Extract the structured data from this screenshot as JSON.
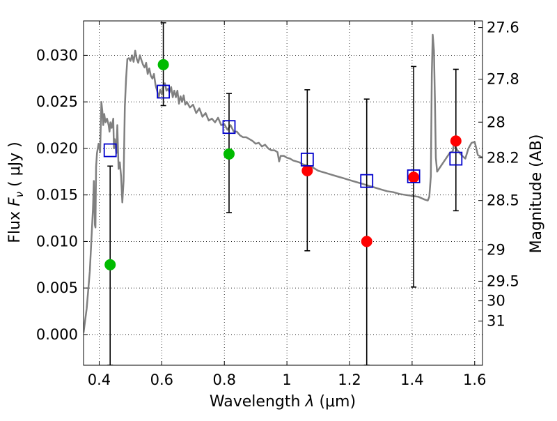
{
  "chart_data": {
    "type": "scatter",
    "xlabel_prefix": "Wavelength",
    "xlabel_symbol": "λ",
    "xlabel_unit": "(μm)",
    "ylabel_prefix": "Flux",
    "ylabel_symbol": "F",
    "ylabel_sub": "ν",
    "ylabel_unit": "( μJy )",
    "right_ylabel": "Magnitude (AB)",
    "xlim": [
      0.35,
      1.625
    ],
    "ylim": [
      -0.0033,
      0.0337
    ],
    "grid": true,
    "x_ticks": [
      {
        "value": 0.4,
        "label": "0.4"
      },
      {
        "value": 0.6,
        "label": "0.6"
      },
      {
        "value": 0.8,
        "label": "0.8"
      },
      {
        "value": 1.0,
        "label": "1"
      },
      {
        "value": 1.2,
        "label": "1.2"
      },
      {
        "value": 1.4,
        "label": "1.4"
      },
      {
        "value": 1.6,
        "label": "1.6"
      }
    ],
    "y_ticks": [
      {
        "value": 0.0,
        "label": "0.000"
      },
      {
        "value": 0.005,
        "label": "0.005"
      },
      {
        "value": 0.01,
        "label": "0.010"
      },
      {
        "value": 0.015,
        "label": "0.015"
      },
      {
        "value": 0.02,
        "label": "0.020"
      },
      {
        "value": 0.025,
        "label": "0.025"
      },
      {
        "value": 0.03,
        "label": "0.030"
      }
    ],
    "right_ticks": [
      {
        "label": "27.6",
        "flux": 0.03298
      },
      {
        "label": "27.8",
        "flux": 0.02744
      },
      {
        "label": "28",
        "flux": 0.02282
      },
      {
        "label": "28.2",
        "flux": 0.01898
      },
      {
        "label": "28.5",
        "flux": 0.0144
      },
      {
        "label": "29",
        "flux": 0.00909
      },
      {
        "label": "29.5",
        "flux": 0.00573
      },
      {
        "label": "30",
        "flux": 0.00362
      },
      {
        "label": "31",
        "flux": 0.00144
      }
    ],
    "series": [
      {
        "kind": "model-spectrum",
        "color": "#808080",
        "points": [
          [
            0.35,
            0.0002
          ],
          [
            0.36,
            0.0028
          ],
          [
            0.37,
            0.0068
          ],
          [
            0.38,
            0.0135
          ],
          [
            0.383,
            0.0165
          ],
          [
            0.386,
            0.0118
          ],
          [
            0.388,
            0.0115
          ],
          [
            0.39,
            0.018
          ],
          [
            0.393,
            0.0195
          ],
          [
            0.398,
            0.0205
          ],
          [
            0.403,
            0.0196
          ],
          [
            0.407,
            0.025
          ],
          [
            0.41,
            0.024
          ],
          [
            0.413,
            0.0225
          ],
          [
            0.416,
            0.0237
          ],
          [
            0.42,
            0.0228
          ],
          [
            0.425,
            0.0232
          ],
          [
            0.43,
            0.0225
          ],
          [
            0.433,
            0.0218
          ],
          [
            0.436,
            0.0228
          ],
          [
            0.44,
            0.0222
          ],
          [
            0.445,
            0.0232
          ],
          [
            0.447,
            0.02
          ],
          [
            0.45,
            0.021
          ],
          [
            0.455,
            0.0195
          ],
          [
            0.458,
            0.0225
          ],
          [
            0.462,
            0.0178
          ],
          [
            0.466,
            0.0185
          ],
          [
            0.47,
            0.017
          ],
          [
            0.474,
            0.0142
          ],
          [
            0.478,
            0.0165
          ],
          [
            0.482,
            0.0245
          ],
          [
            0.486,
            0.0275
          ],
          [
            0.49,
            0.0296
          ],
          [
            0.495,
            0.0297
          ],
          [
            0.5,
            0.0294
          ],
          [
            0.505,
            0.03
          ],
          [
            0.51,
            0.0293
          ],
          [
            0.515,
            0.0305
          ],
          [
            0.52,
            0.0296
          ],
          [
            0.525,
            0.0292
          ],
          [
            0.53,
            0.03
          ],
          [
            0.535,
            0.0295
          ],
          [
            0.54,
            0.029
          ],
          [
            0.545,
            0.0287
          ],
          [
            0.55,
            0.0292
          ],
          [
            0.555,
            0.028
          ],
          [
            0.56,
            0.0286
          ],
          [
            0.565,
            0.0278
          ],
          [
            0.57,
            0.0275
          ],
          [
            0.575,
            0.028
          ],
          [
            0.58,
            0.0268
          ],
          [
            0.585,
            0.0262
          ],
          [
            0.59,
            0.0255
          ],
          [
            0.595,
            0.0263
          ],
          [
            0.6,
            0.0258
          ],
          [
            0.605,
            0.0268
          ],
          [
            0.61,
            0.027
          ],
          [
            0.615,
            0.0262
          ],
          [
            0.62,
            0.0264
          ],
          [
            0.625,
            0.026
          ],
          [
            0.63,
            0.0266
          ],
          [
            0.635,
            0.0255
          ],
          [
            0.64,
            0.0262
          ],
          [
            0.645,
            0.0255
          ],
          [
            0.65,
            0.0262
          ],
          [
            0.655,
            0.0248
          ],
          [
            0.66,
            0.0256
          ],
          [
            0.665,
            0.025
          ],
          [
            0.67,
            0.0257
          ],
          [
            0.675,
            0.0247
          ],
          [
            0.68,
            0.025
          ],
          [
            0.69,
            0.0244
          ],
          [
            0.7,
            0.0247
          ],
          [
            0.71,
            0.0238
          ],
          [
            0.72,
            0.0243
          ],
          [
            0.73,
            0.0234
          ],
          [
            0.74,
            0.0238
          ],
          [
            0.75,
            0.023
          ],
          [
            0.76,
            0.0232
          ],
          [
            0.77,
            0.0228
          ],
          [
            0.78,
            0.0233
          ],
          [
            0.79,
            0.0225
          ],
          [
            0.8,
            0.0226
          ],
          [
            0.81,
            0.022
          ],
          [
            0.82,
            0.0225
          ],
          [
            0.83,
            0.0218
          ],
          [
            0.84,
            0.0218
          ],
          [
            0.85,
            0.0214
          ],
          [
            0.86,
            0.0212
          ],
          [
            0.87,
            0.0212
          ],
          [
            0.88,
            0.021
          ],
          [
            0.89,
            0.0208
          ],
          [
            0.9,
            0.0205
          ],
          [
            0.91,
            0.0206
          ],
          [
            0.92,
            0.0202
          ],
          [
            0.93,
            0.0204
          ],
          [
            0.94,
            0.02
          ],
          [
            0.95,
            0.0198
          ],
          [
            0.96,
            0.0198
          ],
          [
            0.97,
            0.0196
          ],
          [
            0.975,
            0.0186
          ],
          [
            0.98,
            0.0192
          ],
          [
            0.99,
            0.0192
          ],
          [
            1.0,
            0.019
          ],
          [
            1.01,
            0.0189
          ],
          [
            1.02,
            0.0187
          ],
          [
            1.03,
            0.0186
          ],
          [
            1.04,
            0.0185
          ],
          [
            1.05,
            0.0183
          ],
          [
            1.06,
            0.0182
          ],
          [
            1.08,
            0.018
          ],
          [
            1.1,
            0.0176
          ],
          [
            1.12,
            0.0174
          ],
          [
            1.14,
            0.0172
          ],
          [
            1.16,
            0.017
          ],
          [
            1.18,
            0.0168
          ],
          [
            1.2,
            0.0166
          ],
          [
            1.22,
            0.0164
          ],
          [
            1.24,
            0.0162
          ],
          [
            1.26,
            0.016
          ],
          [
            1.28,
            0.0158
          ],
          [
            1.3,
            0.0156
          ],
          [
            1.32,
            0.0154
          ],
          [
            1.34,
            0.0153
          ],
          [
            1.36,
            0.0151
          ],
          [
            1.38,
            0.015
          ],
          [
            1.4,
            0.0149
          ],
          [
            1.42,
            0.0148
          ],
          [
            1.44,
            0.0145
          ],
          [
            1.45,
            0.0144
          ],
          [
            1.455,
            0.0148
          ],
          [
            1.46,
            0.017
          ],
          [
            1.463,
            0.028
          ],
          [
            1.466,
            0.0322
          ],
          [
            1.47,
            0.0305
          ],
          [
            1.473,
            0.025
          ],
          [
            1.476,
            0.019
          ],
          [
            1.48,
            0.0175
          ],
          [
            1.49,
            0.018
          ],
          [
            1.5,
            0.0185
          ],
          [
            1.51,
            0.019
          ],
          [
            1.52,
            0.0195
          ],
          [
            1.53,
            0.0197
          ],
          [
            1.535,
            0.0208
          ],
          [
            1.54,
            0.02
          ],
          [
            1.55,
            0.0196
          ],
          [
            1.56,
            0.0192
          ],
          [
            1.57,
            0.0189
          ],
          [
            1.58,
            0.02
          ],
          [
            1.59,
            0.0206
          ],
          [
            1.6,
            0.0207
          ],
          [
            1.61,
            0.0193
          ],
          [
            1.625,
            0.019
          ]
        ]
      },
      {
        "kind": "observed",
        "color": "#00bb00",
        "points": [
          {
            "x": 0.435,
            "y": 0.0075
          },
          {
            "x": 0.605,
            "y": 0.029
          },
          {
            "x": 0.815,
            "y": 0.0194
          }
        ]
      },
      {
        "kind": "observed",
        "color": "#ff0000",
        "points": [
          {
            "x": 1.065,
            "y": 0.0176
          },
          {
            "x": 1.255,
            "y": 0.01
          },
          {
            "x": 1.405,
            "y": 0.0169
          },
          {
            "x": 1.54,
            "y": 0.0208
          }
        ]
      },
      {
        "kind": "synthetic-photometry",
        "color": "#0000cc",
        "points": [
          {
            "x": 0.435,
            "y": 0.0198
          },
          {
            "x": 0.605,
            "y": 0.0261
          },
          {
            "x": 0.815,
            "y": 0.0223
          },
          {
            "x": 1.065,
            "y": 0.0188
          },
          {
            "x": 1.255,
            "y": 0.0165
          },
          {
            "x": 1.405,
            "y": 0.017
          },
          {
            "x": 1.54,
            "y": 0.0189
          }
        ]
      },
      {
        "kind": "errorbars",
        "color": "#000000",
        "points": [
          {
            "x": 0.435,
            "low": -0.0033,
            "high": 0.0181
          },
          {
            "x": 0.605,
            "low": 0.0246,
            "high": 0.0335
          },
          {
            "x": 0.815,
            "low": 0.0131,
            "high": 0.0259
          },
          {
            "x": 1.065,
            "low": 0.009,
            "high": 0.0263
          },
          {
            "x": 1.255,
            "low": -0.0033,
            "high": 0.0253
          },
          {
            "x": 1.405,
            "low": 0.0051,
            "high": 0.0288
          },
          {
            "x": 1.54,
            "low": 0.0133,
            "high": 0.0285
          }
        ]
      }
    ]
  }
}
